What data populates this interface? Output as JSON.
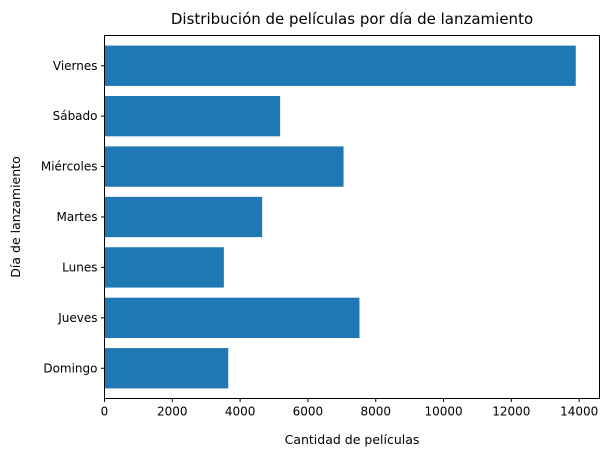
{
  "chart_data": {
    "type": "bar",
    "orientation": "horizontal",
    "title": "Distribución de películas por día de lanzamiento",
    "xlabel": "Cantidad de películas",
    "ylabel": "Día de lanzamiento",
    "categories": [
      "Domingo",
      "Jueves",
      "Lunes",
      "Martes",
      "Miércoles",
      "Sábado",
      "Viernes"
    ],
    "values": [
      3650,
      7520,
      3520,
      4650,
      7050,
      5180,
      13900
    ],
    "xlim": [
      0,
      14600
    ],
    "xticks": [
      0,
      2000,
      4000,
      6000,
      8000,
      10000,
      12000,
      14000
    ],
    "grid": false,
    "legend": "none",
    "bar_color": "#1f77b4"
  }
}
